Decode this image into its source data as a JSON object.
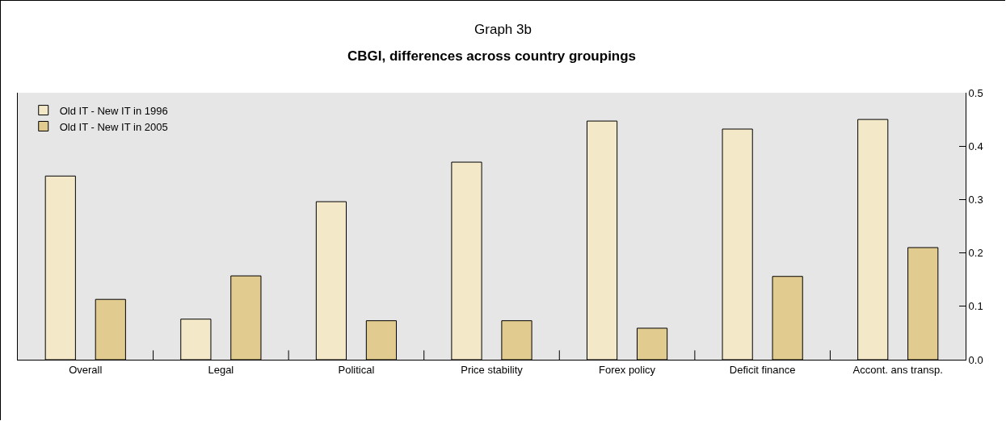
{
  "chart_data": {
    "type": "bar",
    "title": "Graph 3b",
    "subtitle": "CBGI, differences across country groupings",
    "categories": [
      "Overall",
      "Legal",
      "Political",
      "Price stability",
      "Forex policy",
      "Deficit finance",
      "Accont. ans transp."
    ],
    "series": [
      {
        "name": "Old IT - New IT in 1996",
        "color": "#f3e9c9",
        "values": [
          0.344,
          0.076,
          0.296,
          0.37,
          0.447,
          0.432,
          0.45
        ]
      },
      {
        "name": "Old IT - New IT in 2005",
        "color": "#e2cb8f",
        "values": [
          0.113,
          0.157,
          0.073,
          0.073,
          0.059,
          0.156,
          0.21
        ]
      }
    ],
    "ylim": [
      0,
      0.5
    ],
    "yticks": [
      {
        "value": 0,
        "label": "0.0"
      },
      {
        "value": 0.1,
        "label": "0.1"
      },
      {
        "value": 0.2,
        "label": "0.2"
      },
      {
        "value": 0.3,
        "label": "0.3"
      },
      {
        "value": 0.4,
        "label": "0.4"
      },
      {
        "value": 0.5,
        "label": "0.5"
      }
    ],
    "grid": false,
    "legend": "top left"
  }
}
